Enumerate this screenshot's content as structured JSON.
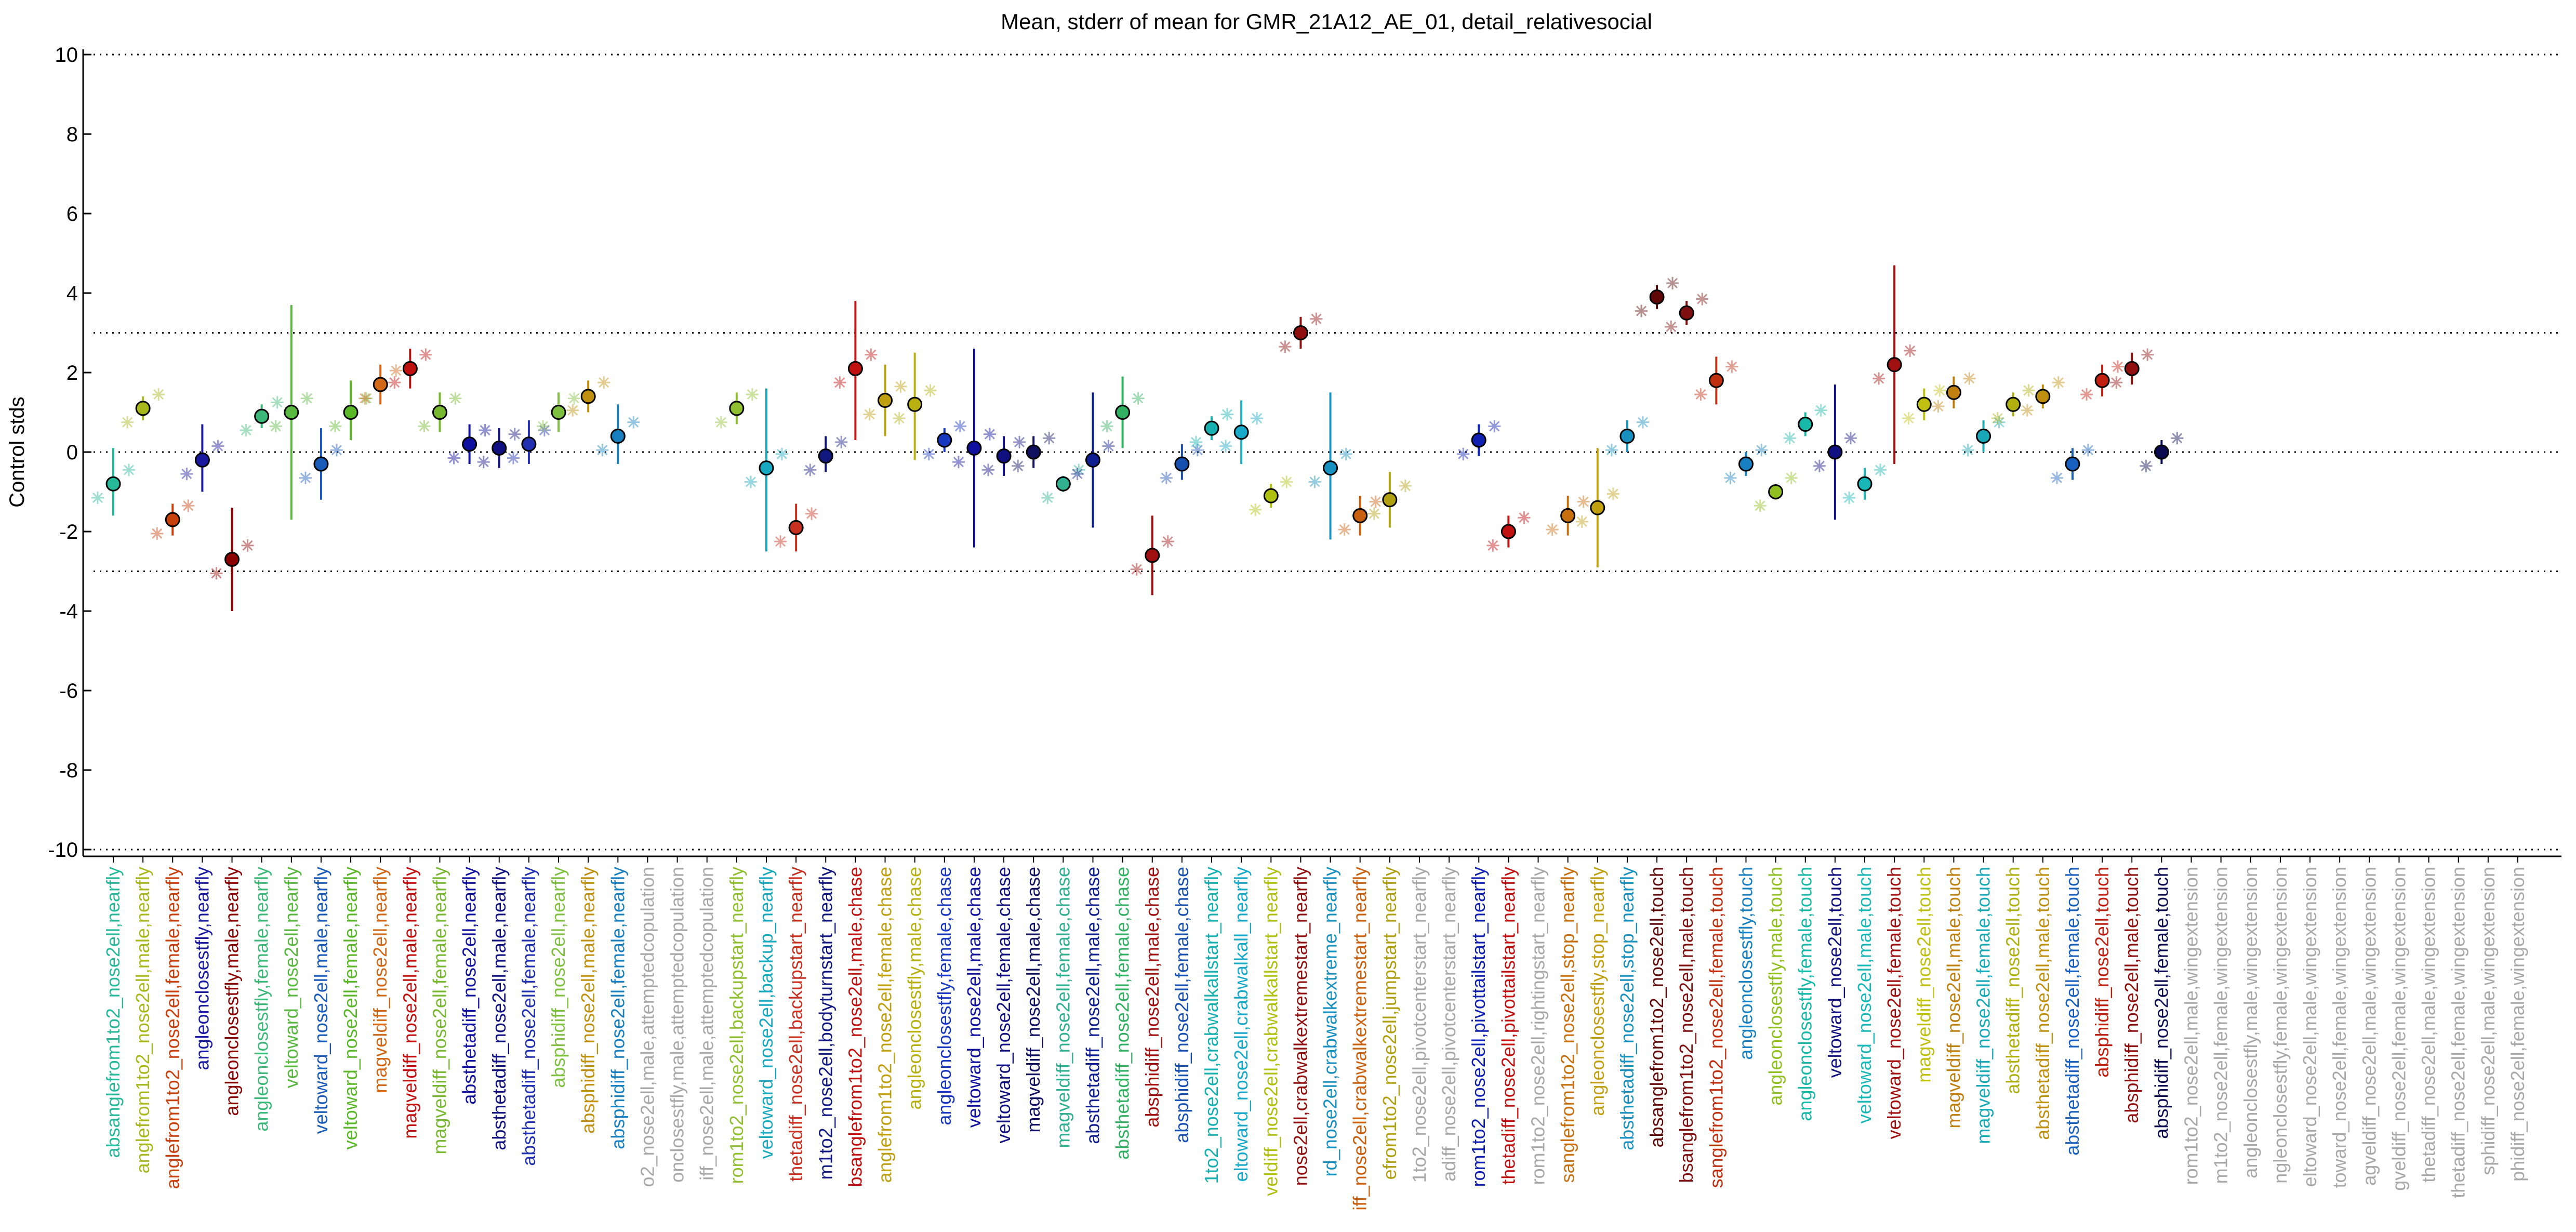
{
  "chart_data": {
    "type": "scatter",
    "title": "Mean, stderr of mean for GMR_21A12_AE_01, detail_relativesocial",
    "ylabel": "Control stds",
    "xlabel": "",
    "ylim": [
      -10,
      10
    ],
    "yticks": [
      -10,
      -8,
      -6,
      -4,
      -2,
      0,
      2,
      4,
      6,
      8,
      10
    ],
    "reference_lines": [
      10,
      3,
      0,
      -3,
      -10
    ],
    "grid": false,
    "points": [
      {
        "label": "absanglefrom1to2_nose2ell,nearfly",
        "mean": -0.8,
        "err_low": -1.6,
        "err_high": 0.1,
        "color": "#27b89a"
      },
      {
        "label": "anglefrom1to2_nose2ell,male,nearfly",
        "mean": 1.1,
        "err_low": 0.8,
        "err_high": 1.4,
        "color": "#a8b81c"
      },
      {
        "label": "anglefrom1to2_nose2ell,female,nearfly",
        "mean": -1.7,
        "err_low": -2.1,
        "err_high": -1.3,
        "color": "#c8400e"
      },
      {
        "label": "angleonclosestfly,nearfly",
        "mean": -0.2,
        "err_low": -1.0,
        "err_high": 0.7,
        "color": "#1a1aa0"
      },
      {
        "label": "angleonclosestfly,male,nearfly",
        "mean": -2.7,
        "err_low": -4.0,
        "err_high": -1.4,
        "color": "#8b0000"
      },
      {
        "label": "angleonclosestfly,female,nearfly",
        "mean": 0.9,
        "err_low": 0.6,
        "err_high": 1.2,
        "color": "#3cb878"
      },
      {
        "label": "veltoward_nose2ell,nearfly",
        "mean": 1.0,
        "err_low": -1.7,
        "err_high": 3.7,
        "color": "#58b840"
      },
      {
        "label": "veltoward_nose2ell,male,nearfly",
        "mean": -0.3,
        "err_low": -1.2,
        "err_high": 0.6,
        "color": "#1a5ab8"
      },
      {
        "label": "veltoward_nose2ell,female,nearfly",
        "mean": 1.0,
        "err_low": 0.3,
        "err_high": 1.8,
        "color": "#5ab828"
      },
      {
        "label": "magveldiff_nose2ell,nearfly",
        "mean": 1.7,
        "err_low": 1.2,
        "err_high": 2.2,
        "color": "#d06818"
      },
      {
        "label": "magveldiff_nose2ell,male,nearfly",
        "mean": 2.1,
        "err_low": 1.6,
        "err_high": 2.6,
        "color": "#c01010"
      },
      {
        "label": "magveldiff_nose2ell,female,nearfly",
        "mean": 1.0,
        "err_low": 0.5,
        "err_high": 1.5,
        "color": "#78b830"
      },
      {
        "label": "absthetadiff_nose2ell,nearfly",
        "mean": 0.2,
        "err_low": -0.3,
        "err_high": 0.7,
        "color": "#1010a0"
      },
      {
        "label": "absthetadiff_nose2ell,male,nearfly",
        "mean": 0.1,
        "err_low": -0.4,
        "err_high": 0.6,
        "color": "#101080"
      },
      {
        "label": "absthetadiff_nose2ell,female,nearfly",
        "mean": 0.2,
        "err_low": -0.3,
        "err_high": 0.8,
        "color": "#2030b0"
      },
      {
        "label": "absphidiff_nose2ell,nearfly",
        "mean": 1.0,
        "err_low": 0.5,
        "err_high": 1.5,
        "color": "#80c040"
      },
      {
        "label": "absphidiff_nose2ell,male,nearfly",
        "mean": 1.4,
        "err_low": 1.0,
        "err_high": 1.8,
        "color": "#c09010"
      },
      {
        "label": "absphidiff_nose2ell,female,nearfly",
        "mean": 0.4,
        "err_low": -0.3,
        "err_high": 1.2,
        "color": "#1880c0"
      },
      {
        "label": "o2_nose2ell,male,attemptedcopulation",
        "mean": null,
        "err_low": null,
        "err_high": null,
        "color": "#a8a8a8"
      },
      {
        "label": "onclosestfly,male,attemptedcopulation",
        "mean": null,
        "err_low": null,
        "err_high": null,
        "color": "#a8a8a8"
      },
      {
        "label": "iff_nose2ell,male,attemptedcopulation",
        "mean": null,
        "err_low": null,
        "err_high": null,
        "color": "#a8a8a8"
      },
      {
        "label": "rom1to2_nose2ell,backupstart_nearfly",
        "mean": 1.1,
        "err_low": 0.7,
        "err_high": 1.5,
        "color": "#90c030"
      },
      {
        "label": "veltoward_nose2ell,backup_nearfly",
        "mean": -0.4,
        "err_low": -2.5,
        "err_high": 1.6,
        "color": "#18a8c0"
      },
      {
        "label": "thetadiff_nose2ell,backupstart_nearfly",
        "mean": -1.9,
        "err_low": -2.5,
        "err_high": -1.3,
        "color": "#c83020"
      },
      {
        "label": "m1to2_nose2ell,bodyturnstart_nearfly",
        "mean": -0.1,
        "err_low": -0.5,
        "err_high": 0.4,
        "color": "#101880"
      },
      {
        "label": "bsanglefrom1to2_nose2ell,male,chase",
        "mean": 2.1,
        "err_low": 0.3,
        "err_high": 3.8,
        "color": "#c01010"
      },
      {
        "label": "anglefrom1to2_nose2ell,female,chase",
        "mean": 1.3,
        "err_low": 0.4,
        "err_high": 2.2,
        "color": "#c0a010"
      },
      {
        "label": "angleonclosestfly,male,chase",
        "mean": 1.2,
        "err_low": -0.2,
        "err_high": 2.5,
        "color": "#b8b010"
      },
      {
        "label": "angleonclosestfly,female,chase",
        "mean": 0.3,
        "err_low": 0.0,
        "err_high": 0.6,
        "color": "#1838c0"
      },
      {
        "label": "veltoward_nose2ell,male,chase",
        "mean": 0.1,
        "err_low": -2.4,
        "err_high": 2.6,
        "color": "#1010a0"
      },
      {
        "label": "veltoward_nose2ell,female,chase",
        "mean": -0.1,
        "err_low": -0.6,
        "err_high": 0.4,
        "color": "#101080"
      },
      {
        "label": "magveldiff_nose2ell,male,chase",
        "mean": 0.0,
        "err_low": -0.4,
        "err_high": 0.4,
        "color": "#101060"
      },
      {
        "label": "magveldiff_nose2ell,female,chase",
        "mean": -0.8,
        "err_low": -1.0,
        "err_high": -0.6,
        "color": "#30b090"
      },
      {
        "label": "absthetadiff_nose2ell,male,chase",
        "mean": -0.2,
        "err_low": -1.9,
        "err_high": 1.5,
        "color": "#102090"
      },
      {
        "label": "absthetadiff_nose2ell,female,chase",
        "mean": 1.0,
        "err_low": 0.1,
        "err_high": 1.9,
        "color": "#30b060"
      },
      {
        "label": "absphidiff_nose2ell,male,chase",
        "mean": -2.6,
        "err_low": -3.6,
        "err_high": -1.6,
        "color": "#a01010"
      },
      {
        "label": "absphidiff_nose2ell,female,chase",
        "mean": -0.3,
        "err_low": -0.7,
        "err_high": 0.2,
        "color": "#1850b0"
      },
      {
        "label": "1to2_nose2ell,crabwalkallstart_nearfly",
        "mean": 0.6,
        "err_low": 0.3,
        "err_high": 0.9,
        "color": "#18b0b0"
      },
      {
        "label": "eltoward_nose2ell,crabwalkall_nearfly",
        "mean": 0.5,
        "err_low": -0.3,
        "err_high": 1.3,
        "color": "#18a8c8"
      },
      {
        "label": "veldiff_nose2ell,crabwalkallstart_nearfly",
        "mean": -1.1,
        "err_low": -1.4,
        "err_high": -0.8,
        "color": "#b0c010"
      },
      {
        "label": "nose2ell,crabwalkextremestart_nearfly",
        "mean": 3.0,
        "err_low": 2.6,
        "err_high": 3.4,
        "color": "#901010"
      },
      {
        "label": "rd_nose2ell,crabwalkextreme_nearfly",
        "mean": -0.4,
        "err_low": -2.2,
        "err_high": 1.5,
        "color": "#1890c0"
      },
      {
        "label": "iff_nose2ell,crabwalkextremestart_nearfly",
        "mean": -1.6,
        "err_low": -2.1,
        "err_high": -1.1,
        "color": "#c86010"
      },
      {
        "label": "efrom1to2_nose2ell,jumpstart_nearfly",
        "mean": -1.2,
        "err_low": -1.9,
        "err_high": -0.5,
        "color": "#b0a010"
      },
      {
        "label": "1to2_nose2ell,pivotcenterstart_nearfly",
        "mean": null,
        "err_low": null,
        "err_high": null,
        "color": "#a8a8a8"
      },
      {
        "label": "adiff_nose2ell,pivotcenterstart_nearfly",
        "mean": null,
        "err_low": null,
        "err_high": null,
        "color": "#a8a8a8"
      },
      {
        "label": "rom1to2_nose2ell,pivottailstart_nearfly",
        "mean": 0.3,
        "err_low": -0.1,
        "err_high": 0.7,
        "color": "#1020b0"
      },
      {
        "label": "thetadiff_nose2ell,pivottailstart_nearfly",
        "mean": -2.0,
        "err_low": -2.4,
        "err_high": -1.6,
        "color": "#c01010"
      },
      {
        "label": "rom1to2_nose2ell,rightingstart_nearfly",
        "mean": null,
        "err_low": null,
        "err_high": null,
        "color": "#a8a8a8"
      },
      {
        "label": "sanglefrom1to2_nose2ell,stop_nearfly",
        "mean": -1.6,
        "err_low": -2.1,
        "err_high": -1.1,
        "color": "#c87010"
      },
      {
        "label": "angleonclosestfly,stop_nearfly",
        "mean": -1.4,
        "err_low": -2.9,
        "err_high": 0.1,
        "color": "#c0a010"
      },
      {
        "label": "absthetadiff_nose2ell,stop_nearfly",
        "mean": 0.4,
        "err_low": 0.0,
        "err_high": 0.8,
        "color": "#1890c0"
      },
      {
        "label": "absanglefrom1to2_nose2ell,touch",
        "mean": 3.9,
        "err_low": 3.6,
        "err_high": 4.2,
        "color": "#600808"
      },
      {
        "label": "bsanglefrom1to2_nose2ell,male,touch",
        "mean": 3.5,
        "err_low": 3.2,
        "err_high": 3.8,
        "color": "#801010"
      },
      {
        "label": "sanglefrom1to2_nose2ell,female,touch",
        "mean": 1.8,
        "err_low": 1.2,
        "err_high": 2.4,
        "color": "#c03010"
      },
      {
        "label": "angleonclosestfly,touch",
        "mean": -0.3,
        "err_low": -0.6,
        "err_high": 0.0,
        "color": "#1880c0"
      },
      {
        "label": "angleonclosestfly,male,touch",
        "mean": -1.0,
        "err_low": -1.2,
        "err_high": -0.8,
        "color": "#90c020"
      },
      {
        "label": "angleonclosestfly,female,touch",
        "mean": 0.7,
        "err_low": 0.4,
        "err_high": 1.0,
        "color": "#18b8a8"
      },
      {
        "label": "veltoward_nose2ell,touch",
        "mean": 0.0,
        "err_low": -1.7,
        "err_high": 1.7,
        "color": "#101080"
      },
      {
        "label": "veltoward_nose2ell,male,touch",
        "mean": -0.8,
        "err_low": -1.2,
        "err_high": -0.4,
        "color": "#18b8b8"
      },
      {
        "label": "veltoward_nose2ell,female,touch",
        "mean": 2.2,
        "err_low": -0.3,
        "err_high": 4.7,
        "color": "#a01010"
      },
      {
        "label": "magveldiff_nose2ell,touch",
        "mean": 1.2,
        "err_low": 0.8,
        "err_high": 1.6,
        "color": "#c0c010"
      },
      {
        "label": "magveldiff_nose2ell,male,touch",
        "mean": 1.5,
        "err_low": 1.1,
        "err_high": 1.9,
        "color": "#c08010"
      },
      {
        "label": "magveldiff_nose2ell,female,touch",
        "mean": 0.4,
        "err_low": 0.0,
        "err_high": 0.8,
        "color": "#18a8b8"
      },
      {
        "label": "absthetadiff_nose2ell,touch",
        "mean": 1.2,
        "err_low": 0.9,
        "err_high": 1.5,
        "color": "#b0b010"
      },
      {
        "label": "absthetadiff_nose2ell,male,touch",
        "mean": 1.4,
        "err_low": 1.1,
        "err_high": 1.7,
        "color": "#c09010"
      },
      {
        "label": "absthetadiff_nose2ell,female,touch",
        "mean": -0.3,
        "err_low": -0.7,
        "err_high": 0.1,
        "color": "#1860c0"
      },
      {
        "label": "absphidiff_nose2ell,touch",
        "mean": 1.8,
        "err_low": 1.4,
        "err_high": 2.2,
        "color": "#c02010"
      },
      {
        "label": "absphidiff_nose2ell,male,touch",
        "mean": 2.1,
        "err_low": 1.7,
        "err_high": 2.5,
        "color": "#901010"
      },
      {
        "label": "absphidiff_nose2ell,female,touch",
        "mean": 0.0,
        "err_low": -0.3,
        "err_high": 0.3,
        "color": "#0a0a50"
      },
      {
        "label": "rom1to2_nose2ell,male,wingextension",
        "mean": null,
        "err_low": null,
        "err_high": null,
        "color": "#a8a8a8"
      },
      {
        "label": "m1to2_nose2ell,female,wingextension",
        "mean": null,
        "err_low": null,
        "err_high": null,
        "color": "#a8a8a8"
      },
      {
        "label": "angleonclosestfly,male,wingextension",
        "mean": null,
        "err_low": null,
        "err_high": null,
        "color": "#a8a8a8"
      },
      {
        "label": "ngleonclosestfly,female,wingextension",
        "mean": null,
        "err_low": null,
        "err_high": null,
        "color": "#a8a8a8"
      },
      {
        "label": "eltoward_nose2ell,male,wingextension",
        "mean": null,
        "err_low": null,
        "err_high": null,
        "color": "#a8a8a8"
      },
      {
        "label": "toward_nose2ell,female,wingextension",
        "mean": null,
        "err_low": null,
        "err_high": null,
        "color": "#a8a8a8"
      },
      {
        "label": "agveldiff_nose2ell,male,wingextension",
        "mean": null,
        "err_low": null,
        "err_high": null,
        "color": "#a8a8a8"
      },
      {
        "label": "gveldiff_nose2ell,female,wingextension",
        "mean": null,
        "err_low": null,
        "err_high": null,
        "color": "#a8a8a8"
      },
      {
        "label": "thetadiff_nose2ell,male,wingextension",
        "mean": null,
        "err_low": null,
        "err_high": null,
        "color": "#a8a8a8"
      },
      {
        "label": "thetadiff_nose2ell,female,wingextension",
        "mean": null,
        "err_low": null,
        "err_high": null,
        "color": "#a8a8a8"
      },
      {
        "label": "sphidiff_nose2ell,male,wingextension",
        "mean": null,
        "err_low": null,
        "err_high": null,
        "color": "#a8a8a8"
      },
      {
        "label": "phidiff_nose2ell,female,wingextension",
        "mean": null,
        "err_low": null,
        "err_high": null,
        "color": "#a8a8a8"
      }
    ]
  }
}
